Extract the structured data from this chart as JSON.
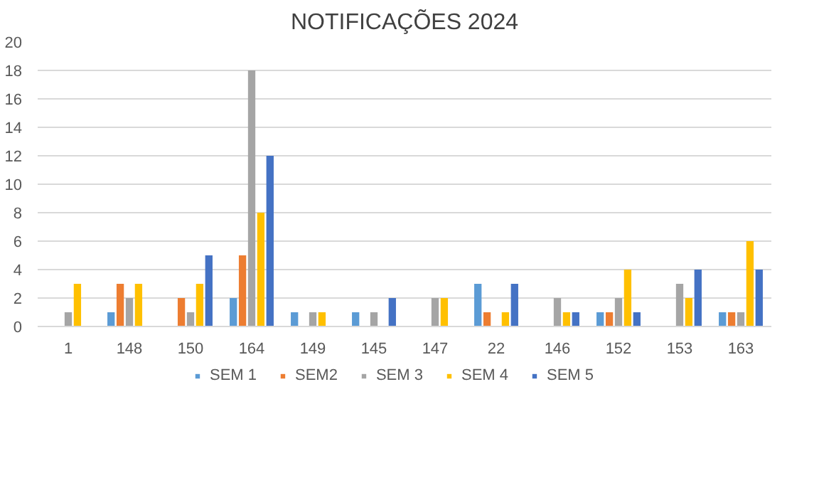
{
  "chart_data": {
    "type": "bar",
    "title": "NOTIFICAÇÕES 2024",
    "categories": [
      "1",
      "148",
      "150",
      "164",
      "149",
      "145",
      "147",
      "22",
      "146",
      "152",
      "153",
      "163"
    ],
    "series": [
      {
        "name": "SEM 1",
        "color": "#5b9bd5",
        "values": [
          null,
          1,
          null,
          2,
          1,
          1,
          null,
          3,
          null,
          1,
          null,
          1
        ]
      },
      {
        "name": "SEM2",
        "color": "#ed7d31",
        "values": [
          null,
          3,
          2,
          5,
          null,
          null,
          null,
          1,
          null,
          1,
          null,
          1
        ]
      },
      {
        "name": "SEM 3",
        "color": "#a5a5a5",
        "values": [
          1,
          2,
          1,
          18,
          1,
          1,
          2,
          null,
          2,
          2,
          3,
          1
        ]
      },
      {
        "name": "SEM 4",
        "color": "#ffc000",
        "values": [
          3,
          3,
          3,
          8,
          1,
          null,
          2,
          1,
          1,
          4,
          2,
          6
        ]
      },
      {
        "name": "SEM 5",
        "color": "#4472c4",
        "values": [
          null,
          null,
          5,
          12,
          null,
          2,
          null,
          3,
          1,
          1,
          4,
          4
        ]
      }
    ],
    "ylim": [
      0,
      20
    ],
    "yticks": [
      0,
      2,
      4,
      6,
      8,
      10,
      12,
      14,
      16,
      18,
      20
    ],
    "grid": "y",
    "legend": "bottom"
  }
}
